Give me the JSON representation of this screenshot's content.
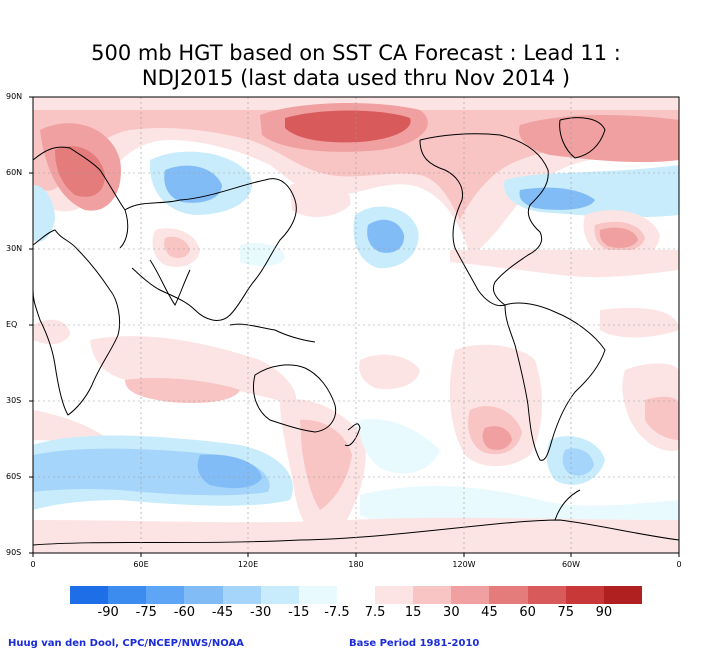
{
  "title_line1": "500 mb HGT based on SST CA Forecast : Lead 11 :",
  "title_line2": "NDJ2015 (last data used thru Nov 2014 )",
  "lat_labels": [
    "90N",
    "60N",
    "30N",
    "EQ",
    "30S",
    "60S",
    "90S"
  ],
  "lon_labels": [
    "0",
    "60E",
    "120E",
    "180",
    "120W",
    "60W",
    "0"
  ],
  "legend": {
    "labels": [
      "-90",
      "-75",
      "-60",
      "-45",
      "-30",
      "-15",
      "-7.5",
      "7.5",
      "15",
      "30",
      "45",
      "60",
      "75",
      "90"
    ],
    "colors": [
      "#1e6ee8",
      "#3c8cf0",
      "#5fa5f5",
      "#82bcf7",
      "#a5d5fa",
      "#c8ecfb",
      "#e8fafe",
      "#ffffff",
      "#fde4e4",
      "#f8c4c4",
      "#f0a0a0",
      "#e57c7c",
      "#d85a5a",
      "#c83838",
      "#b02020"
    ]
  },
  "credit_left": "Huug van den Dool, CPC/NCEP/NWS/NOAA",
  "credit_right": "Base Period 1981-2010"
}
